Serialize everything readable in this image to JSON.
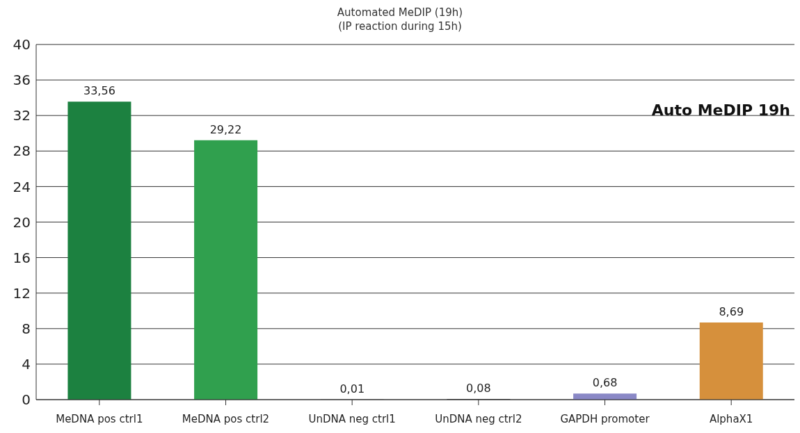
{
  "chart_data": {
    "type": "bar",
    "title": "Automated MeDIP (19h)\n(IP reaction during 15h)",
    "categories": [
      "MeDNA pos ctrl1",
      "MeDNA pos ctrl2",
      "UnDNA neg ctrl1",
      "UnDNA neg ctrl2",
      "GAPDH promoter",
      "AlphaX1"
    ],
    "values": [
      33.56,
      29.22,
      0.01,
      0.08,
      0.68,
      8.69
    ],
    "colors": [
      "#1c8140",
      "#30a04e",
      "#3a3a3a",
      "#3a3a3a",
      "#8a88c6",
      "#d6903c"
    ],
    "value_labels": [
      "33,56",
      "29,22",
      "0,01",
      "0,08",
      "0,68",
      "8,69"
    ],
    "annotations": [
      "Auto MeDIP 19h"
    ],
    "ylim": [
      0,
      40
    ],
    "yticks": [
      0,
      4,
      8,
      12,
      16,
      20,
      24,
      28,
      32,
      36,
      40
    ],
    "grid": "y"
  }
}
